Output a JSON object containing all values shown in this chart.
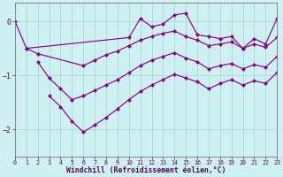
{
  "xlabel": "Windchill (Refroidissement éolien,°C)",
  "bg_color": "#cff0f0",
  "grid_color": "#aadddd",
  "line_color": "#880088",
  "x_ticks": [
    0,
    1,
    2,
    3,
    4,
    5,
    6,
    7,
    8,
    9,
    10,
    11,
    12,
    13,
    14,
    15,
    16,
    17,
    18,
    19,
    20,
    21,
    22,
    23
  ],
  "y_ticks": [
    0,
    -1,
    -2
  ],
  "ylim": [
    -2.5,
    0.35
  ],
  "xlim": [
    0,
    23
  ],
  "lines": [
    {
      "x": [
        0,
        1,
        10,
        11,
        12,
        13,
        14,
        15,
        16,
        17,
        18,
        19,
        20,
        21,
        22,
        23
      ],
      "y": [
        0.0,
        -0.5,
        -0.3,
        0.05,
        -0.1,
        -0.05,
        0.12,
        0.15,
        -0.25,
        -0.28,
        -0.32,
        -0.28,
        -0.5,
        -0.32,
        -0.42,
        0.05
      ]
    },
    {
      "x": [
        1,
        2,
        6,
        7,
        8,
        9,
        10,
        11,
        12,
        13,
        14,
        15,
        16,
        17,
        18,
        19,
        20,
        21,
        22,
        23
      ],
      "y": [
        -0.5,
        -0.6,
        -0.82,
        -0.72,
        -0.62,
        -0.55,
        -0.45,
        -0.35,
        -0.28,
        -0.22,
        -0.18,
        -0.28,
        -0.35,
        -0.45,
        -0.42,
        -0.38,
        -0.5,
        -0.42,
        -0.48,
        -0.3
      ]
    },
    {
      "x": [
        2,
        3,
        4,
        5,
        6,
        7,
        8,
        9,
        10,
        11,
        12,
        13,
        14,
        15,
        16,
        17,
        18,
        19,
        20,
        21,
        22,
        23
      ],
      "y": [
        -0.75,
        -1.05,
        -1.25,
        -1.45,
        -1.38,
        -1.28,
        -1.18,
        -1.08,
        -0.95,
        -0.82,
        -0.72,
        -0.65,
        -0.58,
        -0.68,
        -0.75,
        -0.88,
        -0.82,
        -0.78,
        -0.88,
        -0.8,
        -0.85,
        -0.65
      ]
    },
    {
      "x": [
        3,
        4,
        5,
        6,
        7,
        8,
        9,
        10,
        11,
        12,
        13,
        14,
        15,
        16,
        17,
        18,
        19,
        20,
        21,
        22,
        23
      ],
      "y": [
        -1.38,
        -1.58,
        -1.85,
        -2.05,
        -1.92,
        -1.78,
        -1.62,
        -1.45,
        -1.3,
        -1.18,
        -1.08,
        -0.98,
        -1.05,
        -1.12,
        -1.25,
        -1.15,
        -1.08,
        -1.18,
        -1.1,
        -1.15,
        -0.95
      ]
    }
  ]
}
